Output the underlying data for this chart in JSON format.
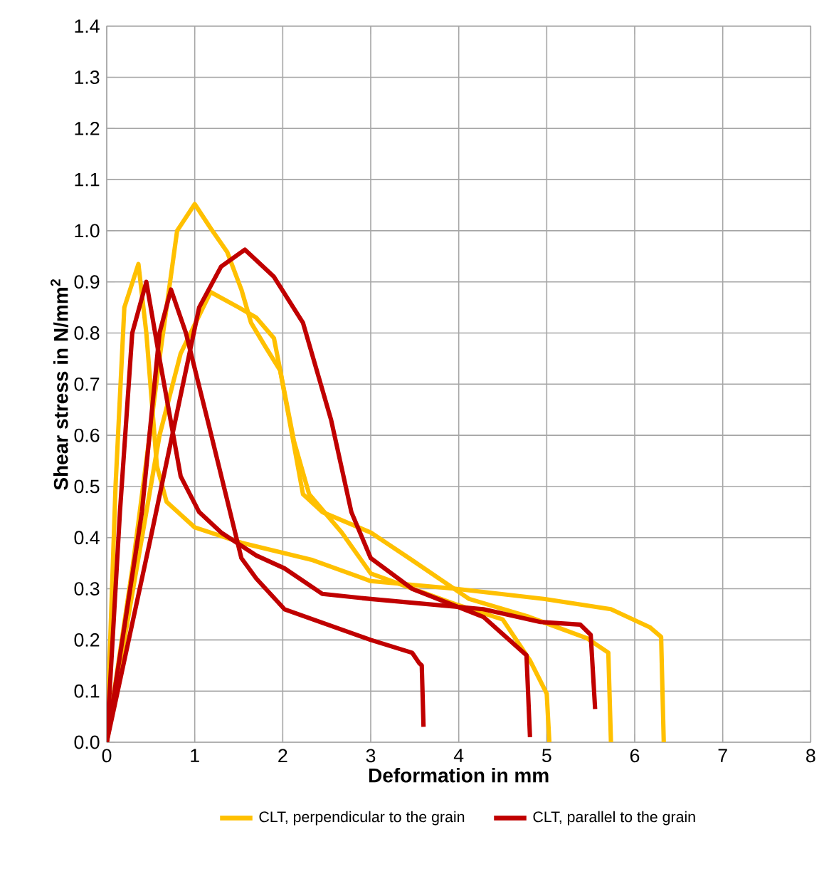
{
  "chart_data": {
    "type": "line",
    "xlabel": "Deformation in mm",
    "ylabel": "Shear stress in N/mm$^{2}$",
    "xlim": [
      0,
      8
    ],
    "ylim": [
      0,
      1.4
    ],
    "xticks": [
      0,
      1,
      2,
      3,
      4,
      5,
      6,
      7,
      8
    ],
    "yticks": [
      {
        "value": 0,
        "label": "0.0"
      },
      0.1,
      0.2,
      0.3,
      0.4,
      0.5,
      0.6,
      0.7,
      0.8,
      0.9,
      {
        "value": 1,
        "label": "1.0"
      },
      1.1,
      1.2,
      1.3,
      1.4
    ],
    "grid": true,
    "legend": "bottom",
    "line_style": "solid",
    "series": [
      {
        "name": "CLT, perpendicular to the grain",
        "color": "#ffc000",
        "x": [
          0,
          0.1,
          0.2,
          0.36,
          0.45,
          0.57,
          0.68,
          1.0,
          1.53,
          2.34,
          3.0,
          3.96,
          4.98,
          5.73,
          6.17,
          6.3,
          6.33
        ],
        "values": [
          0,
          0.5,
          0.85,
          0.935,
          0.8,
          0.54,
          0.47,
          0.42,
          0.39,
          0.356,
          0.315,
          0.3,
          0.28,
          0.26,
          0.225,
          0.206,
          0
        ]
      },
      {
        "color": "#ffc000",
        "x": [
          0,
          0.3,
          0.6,
          0.8,
          1.0,
          1.18,
          1.37,
          1.53,
          1.64,
          1.8,
          1.97,
          2.07,
          2.23,
          2.45,
          3.0,
          3.47,
          4.12,
          4.8,
          5.46,
          5.7,
          5.73
        ],
        "values": [
          0,
          0.35,
          0.75,
          1.0,
          1.052,
          1.005,
          0.958,
          0.885,
          0.82,
          0.774,
          0.727,
          0.635,
          0.485,
          0.45,
          0.41,
          0.356,
          0.28,
          0.245,
          0.203,
          0.175,
          0
        ]
      },
      {
        "color": "#ffc000",
        "x": [
          0,
          0.3,
          0.6,
          0.84,
          1.18,
          1.5,
          1.7,
          1.9,
          2.13,
          2.3,
          2.67,
          3.0,
          3.96,
          4.5,
          4.81,
          5.0,
          5.03
        ],
        "values": [
          0,
          0.3,
          0.6,
          0.76,
          0.88,
          0.85,
          0.83,
          0.79,
          0.587,
          0.485,
          0.41,
          0.33,
          0.27,
          0.24,
          0.16,
          0.095,
          0
        ]
      },
      {
        "name": "CLT, parallel to the grain",
        "color": "#c00000",
        "x": [
          0,
          0.15,
          0.29,
          0.45,
          0.6,
          0.84,
          1.05,
          1.3,
          1.7,
          2.02,
          2.45,
          3.0,
          4.28,
          4.93,
          5.38,
          5.5,
          5.55
        ],
        "values": [
          0,
          0.45,
          0.8,
          0.9,
          0.75,
          0.52,
          0.45,
          0.41,
          0.365,
          0.34,
          0.29,
          0.28,
          0.26,
          0.235,
          0.23,
          0.21,
          0.065
        ]
      },
      {
        "color": "#c00000",
        "x": [
          0,
          0.4,
          0.6,
          0.73,
          0.9,
          1.16,
          1.53,
          1.7,
          2.02,
          3.0,
          3.47,
          3.55,
          3.58,
          3.6
        ],
        "values": [
          0,
          0.45,
          0.8,
          0.885,
          0.8,
          0.62,
          0.36,
          0.32,
          0.26,
          0.2,
          0.175,
          0.155,
          0.15,
          0.03
        ]
      },
      {
        "color": "#c00000",
        "x": [
          0,
          0.5,
          1.05,
          1.3,
          1.57,
          1.9,
          2.23,
          2.55,
          2.78,
          3.0,
          3.47,
          4.28,
          4.77,
          4.81
        ],
        "values": [
          0,
          0.4,
          0.85,
          0.93,
          0.963,
          0.91,
          0.82,
          0.63,
          0.45,
          0.36,
          0.3,
          0.245,
          0.17,
          0.01
        ]
      }
    ]
  }
}
